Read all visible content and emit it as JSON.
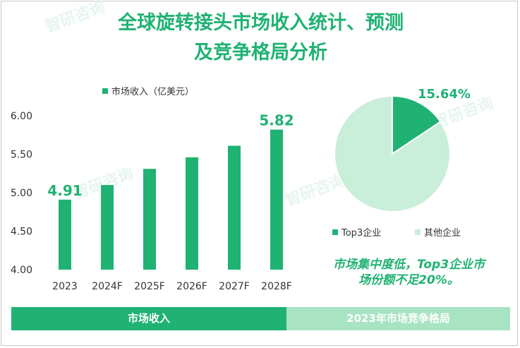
{
  "title": {
    "line1": "全球旋转接头市场收入统计、预测",
    "line2": "及竞争格局分析"
  },
  "colors": {
    "primary": "#1fb273",
    "light": "#c9eed9",
    "footer_light": "#a8e3c2",
    "axis_text": "#333333"
  },
  "chart_data": [
    {
      "type": "bar",
      "legend": {
        "label": "市场收入（亿美元）",
        "position": "top-center"
      },
      "categories": [
        "2023",
        "2024F",
        "2025F",
        "2026F",
        "2027F",
        "2028F"
      ],
      "series": [
        {
          "name": "市场收入（亿美元）",
          "values": [
            4.91,
            5.1,
            5.31,
            5.46,
            5.61,
            5.82
          ]
        }
      ],
      "data_labels": [
        {
          "category": "2023",
          "text": "4.91"
        },
        {
          "category": "2028F",
          "text": "5.82"
        }
      ],
      "ylim": [
        4.0,
        6.0
      ],
      "yticks": [
        "4.00",
        "4.50",
        "5.00",
        "5.50",
        "6.00"
      ],
      "grid": false
    },
    {
      "type": "pie",
      "slices": [
        {
          "label": "Top3企业",
          "value": 15.64
        },
        {
          "label": "其他企业",
          "value": 84.36
        }
      ],
      "data_labels": [
        "15.64%"
      ],
      "legend": {
        "labels": [
          "Top3企业",
          "其他企业"
        ],
        "position": "bottom"
      }
    }
  ],
  "note": {
    "line1": "市场集中度低，Top3企业市",
    "line2": "场份额不足20%。"
  },
  "footer": {
    "left": "市场收入",
    "right": "2023年市场竞争格局"
  },
  "watermark": "智研咨询"
}
